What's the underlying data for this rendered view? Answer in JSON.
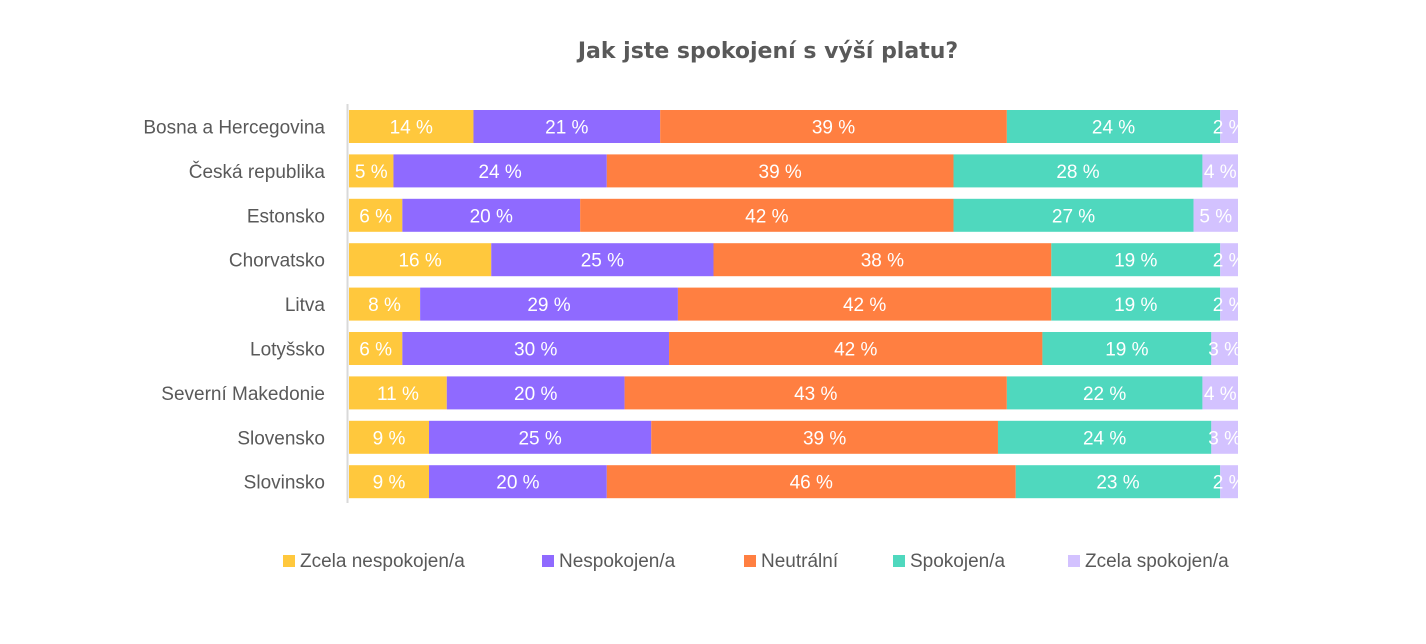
{
  "chart_data": {
    "type": "bar",
    "orientation": "horizontal",
    "stacked": "100%",
    "title": "Jak jste spokojení s výší platu?",
    "xlabel": "",
    "ylabel": "",
    "xlim": [
      0,
      100
    ],
    "grid": false,
    "legend_position": "bottom",
    "value_suffix": " %",
    "categories": [
      "Bosna a Hercegovina",
      "Česká republika",
      "Estonsko",
      "Chorvatsko",
      "Litva",
      "Lotyšsko",
      "Severní Makedonie",
      "Slovensko",
      "Slovinsko"
    ],
    "series": [
      {
        "name": "Zcela nespokojen/a",
        "color": "#FFC83D",
        "values": [
          14,
          5,
          6,
          16,
          8,
          6,
          11,
          9,
          9
        ]
      },
      {
        "name": "Nespokojen/a",
        "color": "#8F6AFF",
        "values": [
          21,
          24,
          20,
          25,
          29,
          30,
          20,
          25,
          20
        ]
      },
      {
        "name": "Neutrální",
        "color": "#FF7F41",
        "values": [
          39,
          39,
          42,
          38,
          42,
          42,
          43,
          39,
          46
        ]
      },
      {
        "name": "Spokojen/a",
        "color": "#4FD8BE",
        "values": [
          24,
          28,
          27,
          19,
          19,
          19,
          22,
          24,
          23
        ]
      },
      {
        "name": "Zcela spokojen/a",
        "color": "#D3C2FF",
        "values": [
          2,
          4,
          5,
          2,
          2,
          3,
          4,
          3,
          2
        ]
      }
    ]
  }
}
